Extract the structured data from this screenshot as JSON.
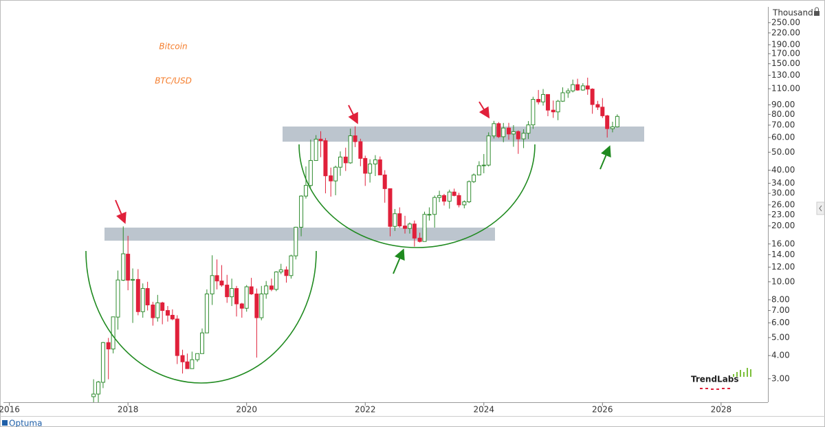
{
  "chart_data": {
    "type": "candlestick",
    "title": "Bitcoin",
    "subtitle": "BTC/USD",
    "y_unit_label": "Thousand",
    "log_scale": true,
    "up_color": "#2e8b2e",
    "down_color": "#e0203a",
    "title_color": "#f57c2a",
    "xlim": [
      2015.9,
      2028.79
    ],
    "ylim": [
      2.24,
      304
    ],
    "xticks": [
      2016,
      2018,
      2020,
      2022,
      2024,
      2026,
      2028
    ],
    "yticks": [
      {
        "value": 250,
        "label": "250.00"
      },
      {
        "value": 220,
        "label": "220.00"
      },
      {
        "value": 190,
        "label": "190.00"
      },
      {
        "value": 170,
        "label": "170.00"
      },
      {
        "value": 150,
        "label": "150.00"
      },
      {
        "value": 130,
        "label": "130.00"
      },
      {
        "value": 110,
        "label": "110.00"
      },
      {
        "value": 90,
        "label": "90.00"
      },
      {
        "value": 80,
        "label": "80.00"
      },
      {
        "value": 70,
        "label": "70.00"
      },
      {
        "value": 60,
        "label": "60.00"
      },
      {
        "value": 50,
        "label": "50.00"
      },
      {
        "value": 40,
        "label": "40.00"
      },
      {
        "value": 34,
        "label": "34.00"
      },
      {
        "value": 30,
        "label": "30.00"
      },
      {
        "value": 26,
        "label": "26.00"
      },
      {
        "value": 23,
        "label": "23.00"
      },
      {
        "value": 20,
        "label": "20.00"
      },
      {
        "value": 16,
        "label": "16.00"
      },
      {
        "value": 14,
        "label": "14.00"
      },
      {
        "value": 12,
        "label": "12.00"
      },
      {
        "value": 10,
        "label": "10.00"
      },
      {
        "value": 8,
        "label": "8.00"
      },
      {
        "value": 7,
        "label": "7.00"
      },
      {
        "value": 6,
        "label": "6.00"
      },
      {
        "value": 5,
        "label": "5.00"
      },
      {
        "value": 4,
        "label": "4.00"
      },
      {
        "value": 3,
        "label": "3.00"
      }
    ],
    "x": [
      2017.42,
      2017.5,
      2017.58,
      2017.67,
      2017.75,
      2017.83,
      2017.92,
      2018,
      2018.08,
      2018.17,
      2018.25,
      2018.33,
      2018.42,
      2018.5,
      2018.58,
      2018.67,
      2018.75,
      2018.83,
      2018.92,
      2019,
      2019.08,
      2019.17,
      2019.25,
      2019.33,
      2019.42,
      2019.5,
      2019.58,
      2019.67,
      2019.75,
      2019.83,
      2019.92,
      2020,
      2020.08,
      2020.17,
      2020.25,
      2020.33,
      2020.42,
      2020.5,
      2020.58,
      2020.67,
      2020.75,
      2020.83,
      2020.92,
      2021,
      2021.08,
      2021.17,
      2021.25,
      2021.33,
      2021.42,
      2021.5,
      2021.58,
      2021.67,
      2021.75,
      2021.83,
      2021.92,
      2022,
      2022.08,
      2022.17,
      2022.25,
      2022.33,
      2022.42,
      2022.5,
      2022.58,
      2022.67,
      2022.75,
      2022.83,
      2022.92,
      2023,
      2023.08,
      2023.17,
      2023.25,
      2023.33,
      2023.42,
      2023.5,
      2023.58,
      2023.67,
      2023.75,
      2023.83,
      2023.92,
      2024,
      2024.08,
      2024.17,
      2024.25,
      2024.33,
      2024.42,
      2024.5,
      2024.58,
      2024.67,
      2024.75,
      2024.83,
      2024.92,
      2025,
      2025.08,
      2025.17,
      2025.25,
      2025.33,
      2025.42,
      2025.5,
      2025.58,
      2025.67,
      2025.75,
      2025.83,
      2025.92,
      2026,
      2026.08,
      2026.17,
      2026.25
    ],
    "ohlc": [
      [
        2.4,
        2.98,
        2.12,
        2.48
      ],
      [
        2.48,
        2.92,
        1.84,
        2.88
      ],
      [
        2.87,
        4.74,
        2.67,
        4.7
      ],
      [
        4.7,
        4.98,
        2.98,
        4.34
      ],
      [
        4.34,
        6.47,
        4.11,
        6.47
      ],
      [
        6.45,
        11.5,
        5.52,
        10.23
      ],
      [
        10.2,
        19.9,
        10.1,
        14.16
      ],
      [
        14.1,
        17.7,
        9.0,
        10.2
      ],
      [
        10.2,
        11.8,
        6.0,
        10.3
      ],
      [
        10.3,
        11.7,
        6.6,
        6.9
      ],
      [
        6.9,
        9.8,
        6.4,
        9.2
      ],
      [
        9.2,
        10.0,
        7.0,
        7.5
      ],
      [
        7.5,
        7.8,
        5.8,
        6.4
      ],
      [
        6.4,
        8.5,
        6.1,
        7.7
      ],
      [
        7.7,
        7.8,
        5.9,
        7.0
      ],
      [
        7.0,
        7.4,
        6.1,
        6.6
      ],
      [
        6.6,
        7.1,
        6.2,
        6.3
      ],
      [
        6.3,
        6.6,
        3.6,
        4.0
      ],
      [
        4.0,
        4.3,
        3.2,
        3.7
      ],
      [
        3.7,
        4.1,
        3.4,
        3.4
      ],
      [
        3.4,
        4.2,
        3.4,
        3.8
      ],
      [
        3.8,
        4.1,
        3.7,
        4.1
      ],
      [
        4.1,
        5.6,
        4.1,
        5.3
      ],
      [
        5.3,
        9.1,
        5.3,
        8.6
      ],
      [
        8.6,
        13.9,
        7.5,
        10.8
      ],
      [
        10.8,
        13.2,
        9.1,
        10.1
      ],
      [
        10.1,
        12.3,
        9.4,
        9.6
      ],
      [
        9.6,
        10.9,
        7.7,
        8.3
      ],
      [
        8.3,
        10.4,
        7.4,
        9.2
      ],
      [
        9.2,
        9.5,
        6.5,
        7.6
      ],
      [
        7.6,
        7.7,
        6.4,
        7.2
      ],
      [
        7.2,
        9.6,
        6.9,
        9.4
      ],
      [
        9.4,
        10.5,
        8.5,
        8.6
      ],
      [
        8.6,
        9.2,
        3.9,
        6.4
      ],
      [
        6.4,
        9.5,
        6.2,
        8.6
      ],
      [
        8.6,
        10.1,
        8.1,
        9.5
      ],
      [
        9.5,
        10.4,
        8.9,
        9.1
      ],
      [
        9.1,
        11.4,
        8.9,
        11.3
      ],
      [
        11.3,
        12.5,
        11.0,
        11.6
      ],
      [
        11.6,
        12.1,
        9.9,
        10.8
      ],
      [
        10.8,
        14.0,
        10.4,
        13.8
      ],
      [
        13.8,
        19.8,
        13.2,
        19.7
      ],
      [
        19.7,
        29.3,
        17.6,
        29.0
      ],
      [
        29.0,
        41.9,
        28.1,
        33.1
      ],
      [
        33.1,
        58.4,
        32.3,
        45.1
      ],
      [
        45.1,
        61.8,
        45.0,
        58.8
      ],
      [
        58.8,
        64.9,
        47.0,
        57.7
      ],
      [
        57.7,
        59.6,
        30.0,
        37.3
      ],
      [
        37.3,
        41.3,
        28.8,
        35.0
      ],
      [
        35.0,
        42.3,
        29.3,
        41.5
      ],
      [
        41.5,
        50.5,
        37.3,
        47.1
      ],
      [
        47.1,
        52.9,
        39.6,
        43.8
      ],
      [
        43.8,
        67.0,
        43.3,
        61.3
      ],
      [
        61.3,
        69.0,
        53.3,
        57.0
      ],
      [
        57.0,
        59.1,
        42.0,
        46.3
      ],
      [
        46.3,
        47.9,
        32.9,
        38.5
      ],
      [
        38.5,
        45.8,
        34.3,
        43.2
      ],
      [
        43.2,
        48.2,
        37.2,
        45.5
      ],
      [
        45.5,
        47.4,
        37.7,
        37.7
      ],
      [
        37.7,
        40.0,
        26.7,
        31.8
      ],
      [
        31.8,
        31.9,
        17.6,
        19.9
      ],
      [
        19.9,
        24.7,
        18.8,
        23.3
      ],
      [
        23.3,
        25.2,
        19.6,
        20.0
      ],
      [
        20.0,
        22.7,
        18.2,
        19.4
      ],
      [
        19.4,
        20.9,
        18.2,
        20.5
      ],
      [
        20.5,
        21.4,
        15.5,
        17.2
      ],
      [
        17.2,
        18.4,
        16.3,
        16.5
      ],
      [
        16.5,
        23.9,
        16.5,
        23.1
      ],
      [
        23.1,
        25.2,
        21.4,
        23.1
      ],
      [
        23.1,
        29.2,
        19.6,
        28.5
      ],
      [
        28.5,
        31.0,
        26.9,
        29.2
      ],
      [
        29.2,
        29.8,
        25.8,
        27.2
      ],
      [
        27.2,
        31.4,
        24.8,
        30.5
      ],
      [
        30.5,
        31.8,
        28.9,
        29.2
      ],
      [
        29.2,
        30.2,
        25.2,
        26.0
      ],
      [
        26.0,
        27.5,
        24.9,
        27.0
      ],
      [
        27.0,
        35.2,
        26.6,
        34.7
      ],
      [
        34.7,
        38.4,
        34.1,
        37.7
      ],
      [
        37.7,
        44.7,
        37.6,
        42.3
      ],
      [
        42.3,
        48.9,
        38.5,
        42.6
      ],
      [
        42.6,
        64.0,
        41.9,
        61.2
      ],
      [
        61.2,
        73.8,
        59.3,
        71.3
      ],
      [
        71.3,
        72.7,
        59.6,
        60.6
      ],
      [
        60.6,
        71.9,
        56.6,
        67.5
      ],
      [
        67.5,
        72.0,
        58.4,
        62.7
      ],
      [
        62.7,
        70.0,
        53.5,
        64.6
      ],
      [
        64.6,
        65.6,
        49.0,
        59.0
      ],
      [
        59.0,
        66.5,
        52.6,
        63.3
      ],
      [
        63.3,
        73.6,
        58.9,
        70.2
      ],
      [
        70.2,
        99.6,
        66.8,
        96.4
      ],
      [
        96.4,
        108.3,
        90.5,
        93.4
      ],
      [
        93.4,
        109.6,
        89.2,
        102.4
      ],
      [
        102.4,
        102.8,
        78.2,
        84.3
      ],
      [
        84.3,
        95.0,
        76.6,
        82.5
      ],
      [
        82.5,
        95.8,
        74.4,
        94.2
      ],
      [
        94.2,
        111.9,
        93.4,
        104.6
      ],
      [
        104.6,
        110.5,
        98.2,
        107.1
      ],
      [
        107.1,
        123.2,
        105.1,
        115.7
      ],
      [
        115.7,
        124.5,
        107.3,
        108.2
      ],
      [
        108.2,
        117.9,
        107.3,
        114.0
      ],
      [
        114.0,
        126.2,
        102.0,
        109.5
      ],
      [
        109.5,
        110.6,
        80.6,
        90.4
      ],
      [
        90.4,
        94.6,
        84.5,
        87.5
      ],
      [
        87.5,
        97.9,
        76.5,
        78.6
      ],
      [
        78.6,
        79.5,
        60.0,
        67.0
      ],
      [
        67.0,
        73.0,
        64.0,
        68.5
      ],
      [
        68.5,
        80.0,
        68.0,
        78.0
      ]
    ]
  },
  "logo": "TrendLabs",
  "footer": "Optuma"
}
